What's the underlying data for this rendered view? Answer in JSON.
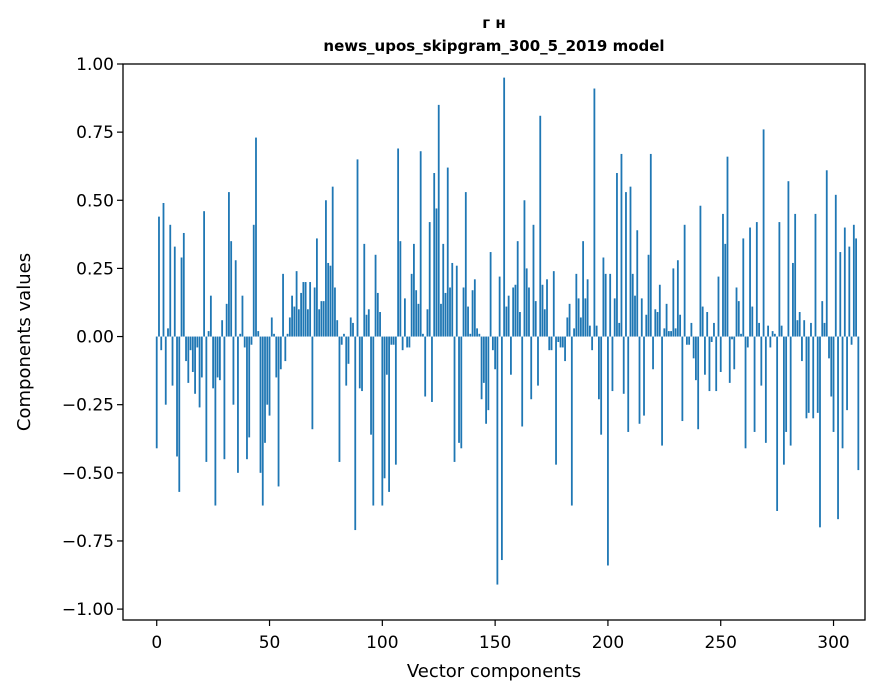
{
  "chart_data": {
    "type": "bar",
    "title": "г н",
    "subtitle": "news_upos_skipgram_300_5_2019 model",
    "xlabel": "Vector components",
    "ylabel": "Components values",
    "xlim": [
      -14.95,
      313.95
    ],
    "ylim": [
      -1.04,
      1.0
    ],
    "x_ticks": [
      0,
      50,
      100,
      150,
      200,
      250,
      300
    ],
    "y_ticks": [
      -1.0,
      -0.75,
      -0.5,
      -0.25,
      0.0,
      0.25,
      0.5,
      0.75,
      1.0
    ],
    "x_tick_labels": [
      "0",
      "50",
      "100",
      "150",
      "200",
      "250",
      "300"
    ],
    "y_tick_labels": [
      "−1.00",
      "−0.75",
      "−0.50",
      "−0.25",
      "0.00",
      "0.25",
      "0.50",
      "0.75",
      "1.00"
    ],
    "bar_color": "#1f77b4",
    "values": [
      -0.41,
      0.44,
      -0.05,
      0.49,
      -0.25,
      0.03,
      0.41,
      -0.18,
      0.33,
      -0.44,
      -0.57,
      0.29,
      0.38,
      -0.09,
      -0.17,
      -0.05,
      -0.13,
      -0.21,
      -0.04,
      -0.26,
      -0.15,
      0.46,
      -0.46,
      0.02,
      0.15,
      -0.19,
      -0.62,
      -0.15,
      -0.16,
      0.06,
      -0.45,
      0.12,
      0.53,
      0.35,
      -0.25,
      0.28,
      -0.5,
      0.01,
      0.15,
      -0.04,
      -0.45,
      -0.37,
      -0.03,
      0.41,
      0.73,
      0.02,
      -0.5,
      -0.62,
      -0.39,
      -0.25,
      -0.29,
      0.07,
      0.01,
      -0.15,
      -0.55,
      -0.12,
      0.23,
      -0.09,
      0.01,
      0.07,
      0.15,
      0.11,
      0.24,
      0.1,
      0.16,
      0.2,
      0.2,
      0.1,
      0.2,
      -0.34,
      0.18,
      0.36,
      0.1,
      0.13,
      0.13,
      0.5,
      0.27,
      0.26,
      0.55,
      0.18,
      0.06,
      -0.46,
      -0.03,
      0.01,
      -0.18,
      -0.1,
      0.07,
      0.05,
      -0.71,
      0.65,
      -0.19,
      -0.2,
      0.34,
      0.08,
      0.1,
      -0.36,
      -0.62,
      0.3,
      0.16,
      0.09,
      -0.62,
      -0.52,
      -0.14,
      -0.57,
      -0.03,
      -0.03,
      -0.47,
      0.69,
      0.35,
      -0.05,
      0.14,
      -0.04,
      -0.04,
      0.23,
      0.34,
      0.17,
      0.12,
      0.68,
      0.01,
      -0.22,
      0.1,
      0.42,
      -0.24,
      0.6,
      0.47,
      0.85,
      0.12,
      0.34,
      0.16,
      0.62,
      0.18,
      0.27,
      -0.46,
      0.26,
      -0.39,
      -0.41,
      0.18,
      0.53,
      0.11,
      0.01,
      0.17,
      0.21,
      0.03,
      0.01,
      -0.23,
      -0.17,
      -0.32,
      -0.27,
      0.31,
      -0.05,
      -0.12,
      -0.91,
      0.22,
      -0.82,
      0.95,
      0.11,
      0.15,
      -0.14,
      0.18,
      0.19,
      0.35,
      0.09,
      -0.33,
      0.5,
      0.25,
      0.18,
      -0.23,
      0.41,
      0.13,
      -0.18,
      0.81,
      0.19,
      0.1,
      0.21,
      -0.05,
      -0.05,
      0.24,
      -0.47,
      -0.02,
      -0.04,
      -0.04,
      -0.09,
      0.07,
      0.12,
      -0.62,
      0.03,
      0.23,
      0.14,
      0.07,
      0.35,
      0.14,
      0.21,
      0.04,
      -0.05,
      0.91,
      0.04,
      -0.23,
      -0.36,
      0.29,
      0.23,
      -0.84,
      0.23,
      -0.2,
      0.14,
      0.6,
      0.05,
      0.67,
      -0.21,
      0.53,
      -0.35,
      0.55,
      0.23,
      0.15,
      0.39,
      -0.32,
      0.14,
      -0.29,
      0.08,
      0.3,
      0.67,
      -0.12,
      0.1,
      0.09,
      0.19,
      -0.4,
      0.03,
      0.12,
      0.02,
      0.02,
      0.25,
      0.03,
      0.28,
      0.08,
      -0.31,
      0.41,
      -0.03,
      -0.03,
      0.05,
      -0.08,
      -0.16,
      -0.34,
      0.48,
      0.11,
      -0.14,
      0.09,
      -0.2,
      -0.02,
      0.05,
      -0.2,
      0.22,
      -0.13,
      0.45,
      0.34,
      0.66,
      -0.17,
      -0.01,
      -0.12,
      0.18,
      0.13,
      0.01,
      0.36,
      -0.41,
      -0.04,
      0.4,
      0.11,
      -0.35,
      0.42,
      0.05,
      -0.18,
      0.76,
      -0.39,
      0.04,
      -0.04,
      0.02,
      0.01,
      -0.64,
      0.42,
      0.04,
      -0.47,
      -0.35,
      0.57,
      -0.4,
      0.27,
      0.45,
      0.06,
      0.09,
      -0.09,
      0.06,
      -0.3,
      -0.28,
      0.05,
      -0.3,
      0.45,
      -0.28,
      -0.7,
      0.13,
      0.05,
      0.61,
      -0.08,
      -0.22,
      -0.35,
      0.52,
      -0.67,
      0.31,
      -0.41,
      0.4,
      -0.27,
      0.33,
      -0.03,
      0.41,
      0.36,
      -0.49
    ]
  }
}
